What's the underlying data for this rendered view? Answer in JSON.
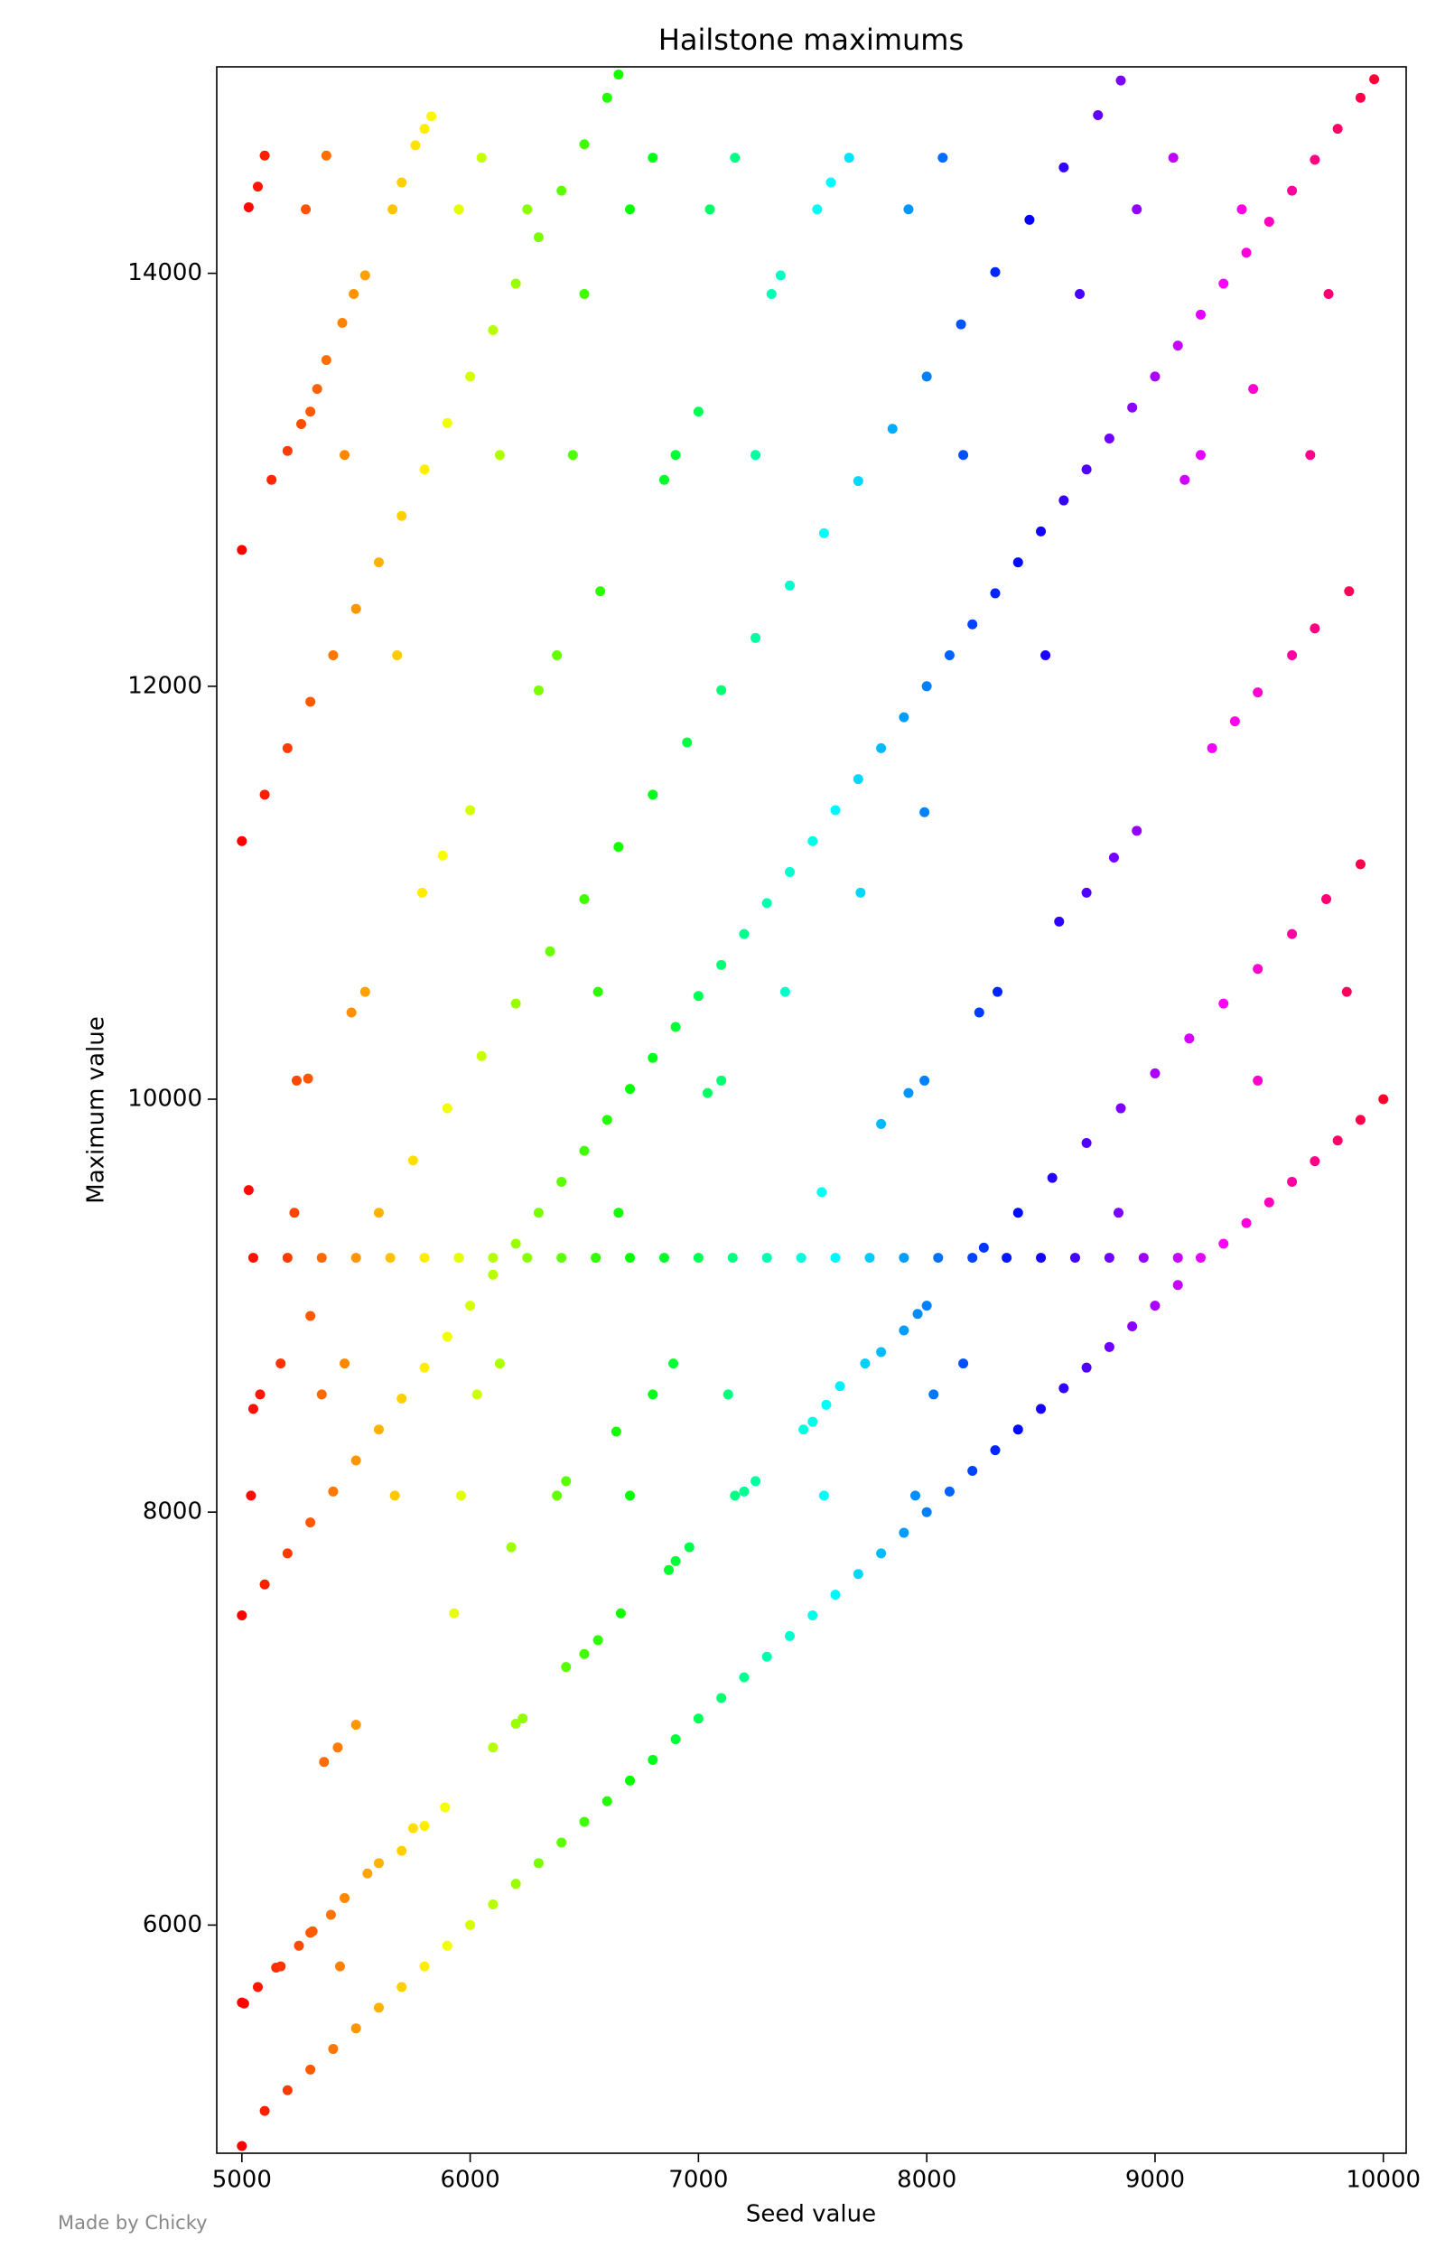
{
  "chart_data": {
    "type": "scatter",
    "title": "Hailstone maximums",
    "x_label": "Seed value",
    "y_label": "Maximum value",
    "footer": "Made by Chicky",
    "colormap": "hsv",
    "xlim": [
      4890,
      10100
    ],
    "ylim": [
      4895,
      15000
    ],
    "xticks": [
      5000,
      6000,
      7000,
      8000,
      9000,
      10000
    ],
    "yticks": [
      6000,
      8000,
      10000,
      12000,
      14000
    ],
    "x": [
      5000,
      5100,
      5200,
      5300,
      5400,
      5500,
      5600,
      5700,
      5800,
      5900,
      6000,
      6100,
      6200,
      6300,
      6400,
      6500,
      6600,
      6700,
      6800,
      6900,
      7000,
      7100,
      7200,
      7300,
      7400,
      7500,
      7600,
      7700,
      7800,
      7900,
      8000,
      8100,
      8200,
      8300,
      8400,
      8500,
      8600,
      8700,
      8800,
      8900,
      9000,
      9100,
      9200,
      9300,
      9400,
      9500,
      9600,
      9700,
      9800,
      9900,
      10000,
      5000,
      5100,
      5200,
      5300,
      5400,
      5500,
      5600,
      5700,
      5800,
      5900,
      6000,
      6100,
      6200,
      6300,
      6400,
      6500,
      6600,
      6700,
      6800,
      6900,
      7000,
      7100,
      7200,
      7300,
      7400,
      7500,
      7600,
      7700,
      7800,
      7900,
      8000,
      8100,
      8200,
      8300,
      8400,
      8500,
      8600,
      8700,
      8800,
      8900,
      9000,
      9100,
      9200,
      9300,
      9400,
      9500,
      9600,
      9700,
      9800,
      9900,
      9960,
      5000,
      5100,
      5200,
      5300,
      5400,
      5500,
      5600,
      5700,
      5800,
      5900,
      6000,
      6100,
      6200,
      6300,
      6400,
      6500,
      6600,
      6650,
      5050,
      5200,
      5350,
      5500,
      5650,
      5800,
      5950,
      6100,
      6250,
      6400,
      6550,
      6700,
      6850,
      7000,
      7150,
      7300,
      7450,
      7600,
      7750,
      7900,
      8050,
      8200,
      8350,
      8500,
      8650,
      8800,
      8950,
      9100,
      5600,
      5750,
      5900,
      6050,
      6200,
      6350,
      6500,
      6650,
      6800,
      6950,
      7100,
      7250,
      7400,
      7550,
      7700,
      7850,
      8000,
      8150,
      8300,
      8450,
      8600,
      8750,
      8850,
      8250,
      8400,
      8550,
      8700,
      8850,
      9000,
      9150,
      9300,
      9450,
      9600,
      9750,
      9900,
      5000,
      5150,
      5300,
      5450,
      5600,
      5750,
      6200,
      6500,
      6900,
      7200,
      7500,
      7800,
      8000,
      7540,
      7800,
      7920,
      7990,
      8230,
      8310,
      8580,
      8700,
      8820,
      8920,
      9250,
      9350,
      9450,
      9600,
      9700,
      9850,
      5000,
      5130,
      5200,
      5260,
      5300,
      5330,
      5370,
      5440,
      5490,
      5540,
      5030,
      5070,
      5100,
      5280,
      5370,
      5660,
      5700,
      5760,
      5800,
      5830,
      5450,
      5680,
      5790,
      5880,
      6000,
      5950,
      6050,
      6130,
      6250,
      6500,
      6450,
      6570,
      6380,
      6300,
      6700,
      6800,
      6850,
      6900,
      7000,
      7050,
      7160,
      7250,
      7320,
      7360,
      7520,
      7580,
      7660,
      7920,
      8070,
      8160,
      8520,
      8670,
      9080,
      8920,
      9380,
      9760,
      9430,
      9130,
      9200,
      9680,
      7380,
      7710,
      7990,
      6560,
      7040,
      7100,
      6650,
      5240,
      5290,
      5480,
      5540,
      5030,
      5230,
      8840,
      9450,
      9840,
      5050,
      5080,
      5170,
      5300,
      5350,
      5450,
      6130,
      6030,
      6890,
      6800,
      7130,
      6640,
      8160,
      8030,
      7900,
      7960,
      7730,
      7620,
      7560,
      7460,
      5040,
      5670,
      5960,
      6380,
      6420,
      6700,
      7160,
      7250,
      7550,
      7950,
      6180,
      6870,
      6960,
      5930,
      6660,
      6420,
      6560,
      6100,
      6230,
      5500,
      5420,
      5360,
      5890,
      5800,
      5700,
      5550,
      5390,
      5310,
      5250,
      5170,
      5070,
      5010,
      5430
    ],
    "values": [
      4930,
      5100,
      5200,
      5300,
      5400,
      5500,
      5600,
      5700,
      5800,
      5900,
      6000,
      6100,
      6200,
      6300,
      6400,
      6500,
      6600,
      6700,
      6800,
      6900,
      7000,
      7100,
      7200,
      7300,
      7400,
      7500,
      7600,
      7700,
      7800,
      7900,
      8000,
      8100,
      8200,
      8300,
      8400,
      8500,
      8600,
      8700,
      8800,
      8900,
      9000,
      9100,
      9232,
      9300,
      9400,
      9500,
      9600,
      9700,
      9800,
      9900,
      10000,
      7500,
      7650,
      7800,
      7950,
      8100,
      8250,
      8400,
      8550,
      8700,
      8850,
      9000,
      9150,
      9300,
      9450,
      9600,
      9750,
      9900,
      10050,
      10200,
      10350,
      10500,
      10650,
      10800,
      10950,
      11100,
      11250,
      11400,
      11550,
      11700,
      11850,
      12000,
      12150,
      12300,
      12450,
      12600,
      12750,
      12900,
      13050,
      13200,
      13350,
      13500,
      13650,
      13800,
      13950,
      14100,
      14250,
      14400,
      14550,
      14700,
      14850,
      14940,
      11250,
      11475,
      11700,
      11925,
      12150,
      12375,
      12600,
      12825,
      13050,
      13275,
      13500,
      13725,
      13950,
      14175,
      14400,
      14625,
      14850,
      14963,
      9232,
      9232,
      9232,
      9232,
      9232,
      9232,
      9232,
      9232,
      9232,
      9232,
      9232,
      9232,
      9232,
      9232,
      9232,
      9232,
      9232,
      9232,
      9232,
      9232,
      9232,
      9232,
      9232,
      9232,
      9232,
      9232,
      9232,
      9232,
      9450,
      9703,
      9956,
      10209,
      10463,
      10716,
      10969,
      11222,
      11475,
      11728,
      11981,
      12234,
      12488,
      12741,
      12994,
      13247,
      13500,
      13753,
      14006,
      14259,
      14513,
      14766,
      14934,
      9281,
      9450,
      9619,
      9788,
      9956,
      10125,
      10294,
      10463,
      10631,
      10800,
      10969,
      11138,
      5625,
      5794,
      5963,
      6131,
      6300,
      6469,
      6975,
      7313,
      7763,
      8100,
      8438,
      8775,
      9000,
      9550,
      9880,
      10030,
      10090,
      10420,
      10520,
      10860,
      11000,
      11170,
      11300,
      11700,
      11830,
      11970,
      12150,
      12280,
      12460,
      12660,
      13000,
      13140,
      13270,
      13330,
      13440,
      13580,
      13760,
      13900,
      13990,
      14320,
      14420,
      14570,
      14310,
      14570,
      14310,
      14440,
      14620,
      14700,
      14760,
      13120,
      12150,
      11000,
      11180,
      11400,
      14310,
      14560,
      13120,
      14310,
      13900,
      13120,
      12460,
      12150,
      11980,
      14310,
      14560,
      13000,
      13120,
      13330,
      14310,
      14560,
      13120,
      13900,
      13990,
      14310,
      14440,
      14560,
      14310,
      14560,
      13120,
      12150,
      13900,
      14560,
      14310,
      14310,
      13900,
      13440,
      13000,
      13120,
      13120,
      10520,
      11000,
      11390,
      10520,
      10030,
      10090,
      9450,
      10090,
      10100,
      10420,
      10520,
      9560,
      9450,
      9450,
      10090,
      10520,
      8500,
      8570,
      8720,
      8950,
      8570,
      8720,
      8720,
      8570,
      8720,
      8570,
      8570,
      8390,
      8720,
      8570,
      8880,
      8960,
      8720,
      8610,
      8520,
      8400,
      8080,
      8080,
      8080,
      8080,
      8150,
      8080,
      8080,
      8150,
      8080,
      8080,
      7830,
      7720,
      7830,
      7510,
      7510,
      7250,
      7380,
      6860,
      7000,
      6970,
      6860,
      6790,
      6570,
      6480,
      6360,
      6250,
      6050,
      5970,
      5900,
      5800,
      5700,
      5620,
      5800
    ]
  }
}
